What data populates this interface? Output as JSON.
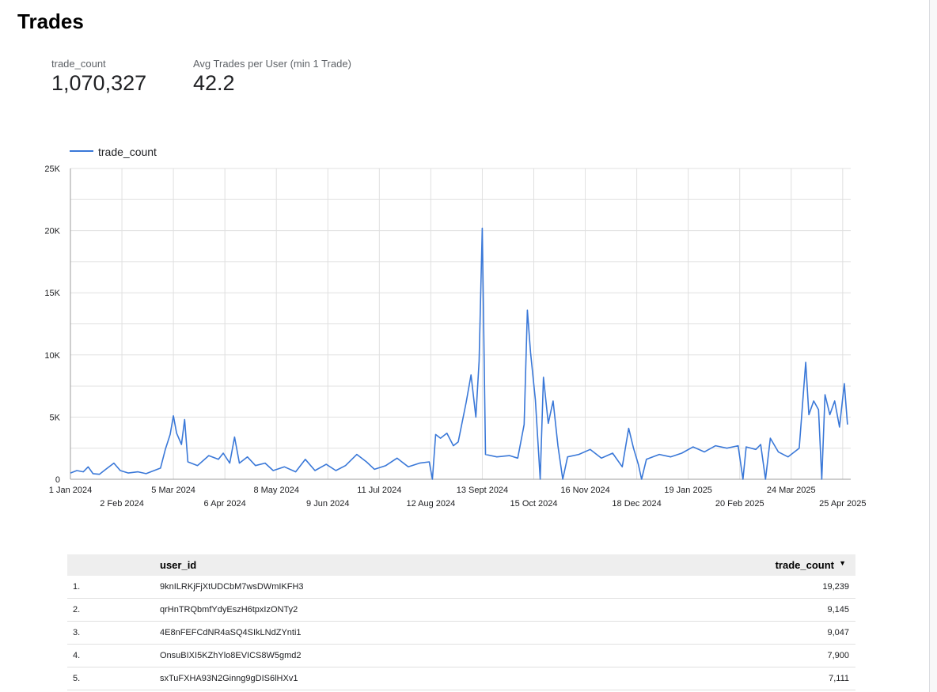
{
  "report": {
    "title": "Trades"
  },
  "scorecards": [
    {
      "label": "trade_count",
      "value": "1,070,327"
    },
    {
      "label": "Avg Trades per User (min 1 Trade)",
      "value": "42.2"
    }
  ],
  "chart_data": {
    "type": "line",
    "title": "",
    "xlabel": "",
    "ylabel": "",
    "legend_position": "top-left",
    "grid": true,
    "color": "#3a78d8",
    "ylim": [
      0,
      25000
    ],
    "y_ticks": [
      "0",
      "5K",
      "10K",
      "15K",
      "20K",
      "25K"
    ],
    "x_range": [
      "2024-01-01",
      "2025-04-30"
    ],
    "x_ticks": [
      {
        "date": "2024-01-01",
        "label": "1 Jan 2024"
      },
      {
        "date": "2024-02-02",
        "label": "2 Feb 2024"
      },
      {
        "date": "2024-03-05",
        "label": "5 Mar 2024"
      },
      {
        "date": "2024-04-06",
        "label": "6 Apr 2024"
      },
      {
        "date": "2024-05-08",
        "label": "8 May 2024"
      },
      {
        "date": "2024-06-09",
        "label": "9 Jun 2024"
      },
      {
        "date": "2024-07-11",
        "label": "11 Jul 2024"
      },
      {
        "date": "2024-08-12",
        "label": "12 Aug 2024"
      },
      {
        "date": "2024-09-13",
        "label": "13 Sept 2024"
      },
      {
        "date": "2024-10-15",
        "label": "15 Oct 2024"
      },
      {
        "date": "2024-11-16",
        "label": "16 Nov 2024"
      },
      {
        "date": "2024-12-18",
        "label": "18 Dec 2024"
      },
      {
        "date": "2025-01-19",
        "label": "19 Jan 2025"
      },
      {
        "date": "2025-02-20",
        "label": "20 Feb 2025"
      },
      {
        "date": "2025-03-24",
        "label": "24 Mar 2025"
      },
      {
        "date": "2025-04-25",
        "label": "25 Apr 2025"
      }
    ],
    "series": [
      {
        "name": "trade_count",
        "points": [
          [
            "2024-01-01",
            500
          ],
          [
            "2024-01-05",
            700
          ],
          [
            "2024-01-09",
            600
          ],
          [
            "2024-01-12",
            1000
          ],
          [
            "2024-01-15",
            450
          ],
          [
            "2024-01-19",
            400
          ],
          [
            "2024-01-23",
            800
          ],
          [
            "2024-01-28",
            1300
          ],
          [
            "2024-02-01",
            700
          ],
          [
            "2024-02-06",
            500
          ],
          [
            "2024-02-12",
            600
          ],
          [
            "2024-02-17",
            450
          ],
          [
            "2024-02-22",
            700
          ],
          [
            "2024-02-26",
            900
          ],
          [
            "2024-02-29",
            2400
          ],
          [
            "2024-03-03",
            3600
          ],
          [
            "2024-03-05",
            5100
          ],
          [
            "2024-03-07",
            3700
          ],
          [
            "2024-03-10",
            2800
          ],
          [
            "2024-03-12",
            4800
          ],
          [
            "2024-03-14",
            1400
          ],
          [
            "2024-03-20",
            1100
          ],
          [
            "2024-03-27",
            1900
          ],
          [
            "2024-04-02",
            1600
          ],
          [
            "2024-04-05",
            2100
          ],
          [
            "2024-04-09",
            1300
          ],
          [
            "2024-04-12",
            3400
          ],
          [
            "2024-04-15",
            1300
          ],
          [
            "2024-04-20",
            1800
          ],
          [
            "2024-04-25",
            1100
          ],
          [
            "2024-05-01",
            1300
          ],
          [
            "2024-05-06",
            700
          ],
          [
            "2024-05-13",
            1000
          ],
          [
            "2024-05-20",
            600
          ],
          [
            "2024-05-26",
            1600
          ],
          [
            "2024-06-01",
            700
          ],
          [
            "2024-06-08",
            1200
          ],
          [
            "2024-06-14",
            700
          ],
          [
            "2024-06-20",
            1100
          ],
          [
            "2024-06-27",
            2000
          ],
          [
            "2024-07-03",
            1400
          ],
          [
            "2024-07-08",
            800
          ],
          [
            "2024-07-15",
            1100
          ],
          [
            "2024-07-22",
            1700
          ],
          [
            "2024-07-29",
            1000
          ],
          [
            "2024-08-05",
            1300
          ],
          [
            "2024-08-11",
            1400
          ],
          [
            "2024-08-13",
            0
          ],
          [
            "2024-08-15",
            3600
          ],
          [
            "2024-08-18",
            3300
          ],
          [
            "2024-08-22",
            3700
          ],
          [
            "2024-08-26",
            2700
          ],
          [
            "2024-08-29",
            3000
          ],
          [
            "2024-09-03",
            6200
          ],
          [
            "2024-09-06",
            8400
          ],
          [
            "2024-09-09",
            5000
          ],
          [
            "2024-09-11",
            9500
          ],
          [
            "2024-09-13",
            20200
          ],
          [
            "2024-09-15",
            2000
          ],
          [
            "2024-09-22",
            1800
          ],
          [
            "2024-09-30",
            1900
          ],
          [
            "2024-10-05",
            1700
          ],
          [
            "2024-10-09",
            4400
          ],
          [
            "2024-10-11",
            13600
          ],
          [
            "2024-10-13",
            10200
          ],
          [
            "2024-10-16",
            6400
          ],
          [
            "2024-10-19",
            0
          ],
          [
            "2024-10-21",
            8200
          ],
          [
            "2024-10-24",
            4500
          ],
          [
            "2024-10-27",
            6300
          ],
          [
            "2024-10-30",
            2700
          ],
          [
            "2024-11-02",
            0
          ],
          [
            "2024-11-05",
            1800
          ],
          [
            "2024-11-12",
            2000
          ],
          [
            "2024-11-19",
            2400
          ],
          [
            "2024-11-26",
            1700
          ],
          [
            "2024-12-03",
            2100
          ],
          [
            "2024-12-09",
            1000
          ],
          [
            "2024-12-13",
            4100
          ],
          [
            "2024-12-16",
            2500
          ],
          [
            "2024-12-19",
            1200
          ],
          [
            "2024-12-21",
            0
          ],
          [
            "2024-12-24",
            1600
          ],
          [
            "2025-01-01",
            2000
          ],
          [
            "2025-01-08",
            1800
          ],
          [
            "2025-01-15",
            2100
          ],
          [
            "2025-01-22",
            2600
          ],
          [
            "2025-01-29",
            2200
          ],
          [
            "2025-02-05",
            2700
          ],
          [
            "2025-02-12",
            2500
          ],
          [
            "2025-02-19",
            2700
          ],
          [
            "2025-02-22",
            0
          ],
          [
            "2025-02-24",
            2600
          ],
          [
            "2025-03-02",
            2400
          ],
          [
            "2025-03-05",
            2800
          ],
          [
            "2025-03-08",
            0
          ],
          [
            "2025-03-11",
            3300
          ],
          [
            "2025-03-16",
            2200
          ],
          [
            "2025-03-22",
            1800
          ],
          [
            "2025-03-29",
            2500
          ],
          [
            "2025-04-02",
            9400
          ],
          [
            "2025-04-04",
            5200
          ],
          [
            "2025-04-07",
            6300
          ],
          [
            "2025-04-10",
            5600
          ],
          [
            "2025-04-12",
            0
          ],
          [
            "2025-04-14",
            6800
          ],
          [
            "2025-04-17",
            5200
          ],
          [
            "2025-04-20",
            6300
          ],
          [
            "2025-04-23",
            4200
          ],
          [
            "2025-04-26",
            7700
          ],
          [
            "2025-04-28",
            4400
          ]
        ]
      }
    ]
  },
  "table": {
    "columns": [
      "user_id",
      "trade_count"
    ],
    "sort_indicator": "▼",
    "rows": [
      {
        "index": "1.",
        "user_id": "9knILRKjFjXtUDCbM7wsDWmIKFH3",
        "trade_count": "19,239"
      },
      {
        "index": "2.",
        "user_id": "qrHnTRQbmfYdyEszH6tpxIzONTy2",
        "trade_count": "9,145"
      },
      {
        "index": "3.",
        "user_id": "4E8nFEFCdNR4aSQ4SIkLNdZYnti1",
        "trade_count": "9,047"
      },
      {
        "index": "4.",
        "user_id": "OnsuBIXI5KZhYlo8EVICS8W5gmd2",
        "trade_count": "7,900"
      },
      {
        "index": "5.",
        "user_id": "sxTuFXHA93N2Ginng9gDIS6lHXv1",
        "trade_count": "7,111"
      }
    ]
  }
}
